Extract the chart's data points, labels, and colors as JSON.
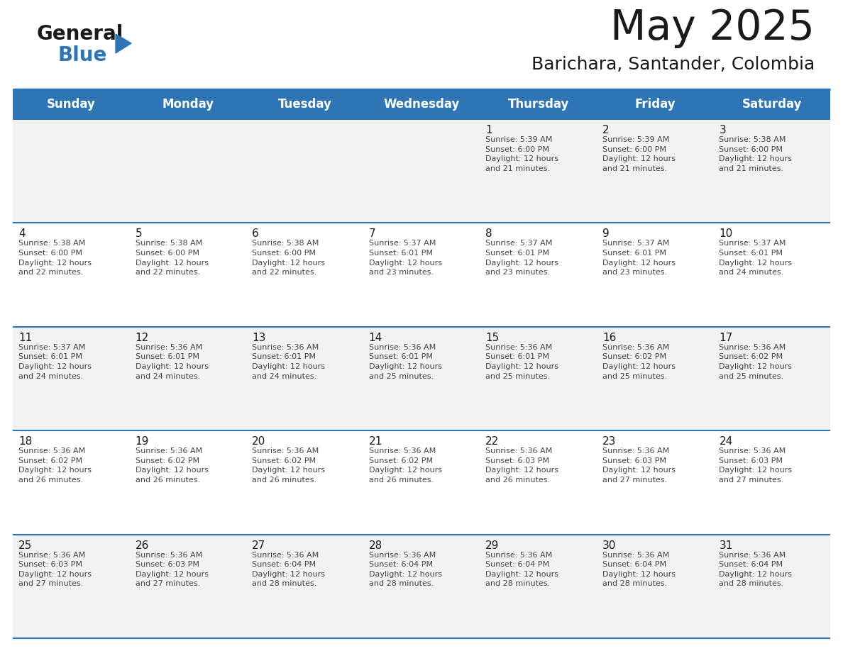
{
  "title": "May 2025",
  "subtitle": "Barichara, Santander, Colombia",
  "header_bg": "#2E75B6",
  "header_text": "#FFFFFF",
  "cell_bg_odd": "#F2F2F2",
  "cell_bg_even": "#FFFFFF",
  "cell_text_color": "#444444",
  "day_number_color": "#1a1a1a",
  "line_color": "#2E75B6",
  "day_names": [
    "Sunday",
    "Monday",
    "Tuesday",
    "Wednesday",
    "Thursday",
    "Friday",
    "Saturday"
  ],
  "weeks": [
    [
      {
        "day": null,
        "info": null
      },
      {
        "day": null,
        "info": null
      },
      {
        "day": null,
        "info": null
      },
      {
        "day": null,
        "info": null
      },
      {
        "day": 1,
        "info": "Sunrise: 5:39 AM\nSunset: 6:00 PM\nDaylight: 12 hours\nand 21 minutes."
      },
      {
        "day": 2,
        "info": "Sunrise: 5:39 AM\nSunset: 6:00 PM\nDaylight: 12 hours\nand 21 minutes."
      },
      {
        "day": 3,
        "info": "Sunrise: 5:38 AM\nSunset: 6:00 PM\nDaylight: 12 hours\nand 21 minutes."
      }
    ],
    [
      {
        "day": 4,
        "info": "Sunrise: 5:38 AM\nSunset: 6:00 PM\nDaylight: 12 hours\nand 22 minutes."
      },
      {
        "day": 5,
        "info": "Sunrise: 5:38 AM\nSunset: 6:00 PM\nDaylight: 12 hours\nand 22 minutes."
      },
      {
        "day": 6,
        "info": "Sunrise: 5:38 AM\nSunset: 6:00 PM\nDaylight: 12 hours\nand 22 minutes."
      },
      {
        "day": 7,
        "info": "Sunrise: 5:37 AM\nSunset: 6:01 PM\nDaylight: 12 hours\nand 23 minutes."
      },
      {
        "day": 8,
        "info": "Sunrise: 5:37 AM\nSunset: 6:01 PM\nDaylight: 12 hours\nand 23 minutes."
      },
      {
        "day": 9,
        "info": "Sunrise: 5:37 AM\nSunset: 6:01 PM\nDaylight: 12 hours\nand 23 minutes."
      },
      {
        "day": 10,
        "info": "Sunrise: 5:37 AM\nSunset: 6:01 PM\nDaylight: 12 hours\nand 24 minutes."
      }
    ],
    [
      {
        "day": 11,
        "info": "Sunrise: 5:37 AM\nSunset: 6:01 PM\nDaylight: 12 hours\nand 24 minutes."
      },
      {
        "day": 12,
        "info": "Sunrise: 5:36 AM\nSunset: 6:01 PM\nDaylight: 12 hours\nand 24 minutes."
      },
      {
        "day": 13,
        "info": "Sunrise: 5:36 AM\nSunset: 6:01 PM\nDaylight: 12 hours\nand 24 minutes."
      },
      {
        "day": 14,
        "info": "Sunrise: 5:36 AM\nSunset: 6:01 PM\nDaylight: 12 hours\nand 25 minutes."
      },
      {
        "day": 15,
        "info": "Sunrise: 5:36 AM\nSunset: 6:01 PM\nDaylight: 12 hours\nand 25 minutes."
      },
      {
        "day": 16,
        "info": "Sunrise: 5:36 AM\nSunset: 6:02 PM\nDaylight: 12 hours\nand 25 minutes."
      },
      {
        "day": 17,
        "info": "Sunrise: 5:36 AM\nSunset: 6:02 PM\nDaylight: 12 hours\nand 25 minutes."
      }
    ],
    [
      {
        "day": 18,
        "info": "Sunrise: 5:36 AM\nSunset: 6:02 PM\nDaylight: 12 hours\nand 26 minutes."
      },
      {
        "day": 19,
        "info": "Sunrise: 5:36 AM\nSunset: 6:02 PM\nDaylight: 12 hours\nand 26 minutes."
      },
      {
        "day": 20,
        "info": "Sunrise: 5:36 AM\nSunset: 6:02 PM\nDaylight: 12 hours\nand 26 minutes."
      },
      {
        "day": 21,
        "info": "Sunrise: 5:36 AM\nSunset: 6:02 PM\nDaylight: 12 hours\nand 26 minutes."
      },
      {
        "day": 22,
        "info": "Sunrise: 5:36 AM\nSunset: 6:03 PM\nDaylight: 12 hours\nand 26 minutes."
      },
      {
        "day": 23,
        "info": "Sunrise: 5:36 AM\nSunset: 6:03 PM\nDaylight: 12 hours\nand 27 minutes."
      },
      {
        "day": 24,
        "info": "Sunrise: 5:36 AM\nSunset: 6:03 PM\nDaylight: 12 hours\nand 27 minutes."
      }
    ],
    [
      {
        "day": 25,
        "info": "Sunrise: 5:36 AM\nSunset: 6:03 PM\nDaylight: 12 hours\nand 27 minutes."
      },
      {
        "day": 26,
        "info": "Sunrise: 5:36 AM\nSunset: 6:03 PM\nDaylight: 12 hours\nand 27 minutes."
      },
      {
        "day": 27,
        "info": "Sunrise: 5:36 AM\nSunset: 6:04 PM\nDaylight: 12 hours\nand 28 minutes."
      },
      {
        "day": 28,
        "info": "Sunrise: 5:36 AM\nSunset: 6:04 PM\nDaylight: 12 hours\nand 28 minutes."
      },
      {
        "day": 29,
        "info": "Sunrise: 5:36 AM\nSunset: 6:04 PM\nDaylight: 12 hours\nand 28 minutes."
      },
      {
        "day": 30,
        "info": "Sunrise: 5:36 AM\nSunset: 6:04 PM\nDaylight: 12 hours\nand 28 minutes."
      },
      {
        "day": 31,
        "info": "Sunrise: 5:36 AM\nSunset: 6:04 PM\nDaylight: 12 hours\nand 28 minutes."
      }
    ]
  ],
  "logo_general_color": "#1a1a1a",
  "logo_blue_color": "#2E75B6",
  "logo_triangle_color": "#2E75B6",
  "fig_width": 11.88,
  "fig_height": 9.18,
  "fig_dpi": 100
}
